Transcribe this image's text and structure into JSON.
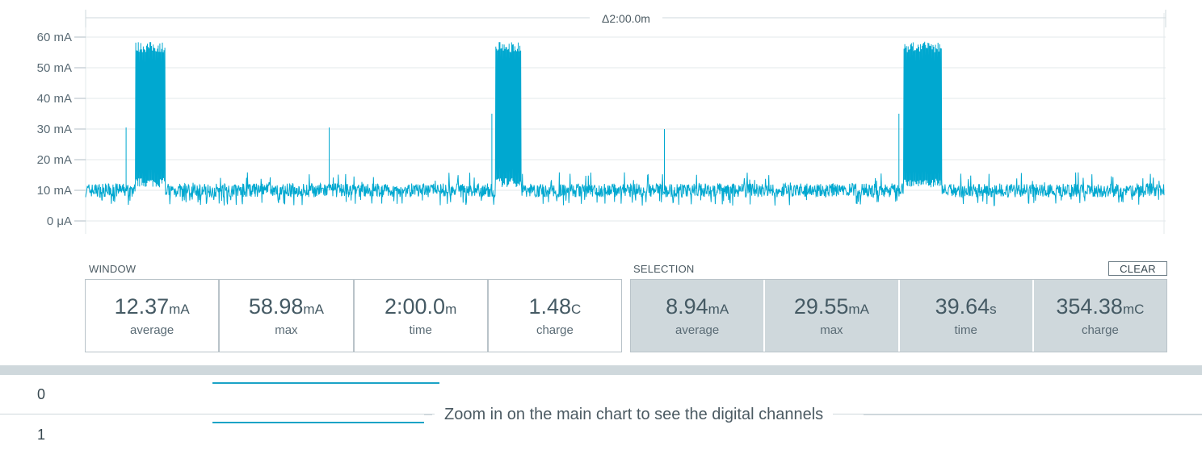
{
  "chart": {
    "delta_label": "Δ2:00.0m",
    "y_ticks": [
      "60 mA",
      "50 mA",
      "40 mA",
      "30 mA",
      "20 mA",
      "10 mA",
      "0 μA"
    ],
    "line_color": "#00a8d0"
  },
  "chart_data": {
    "type": "line",
    "title": "",
    "xlabel": "",
    "ylabel": "",
    "ylim": [
      0,
      60
    ],
    "y_unit": "mA",
    "x_range_label": "Δ2:00.0m",
    "series": [
      {
        "name": "",
        "points": [
          [
            0.0,
            10.5
          ],
          [
            1.6,
            11.0
          ],
          [
            3.1,
            10.2
          ],
          [
            4.5,
            30.5
          ],
          [
            5.0,
            9.8
          ],
          [
            5.3,
            12.0
          ],
          [
            5.5,
            57.0
          ],
          [
            7.0,
            57.5
          ],
          [
            8.8,
            58.9
          ],
          [
            9.0,
            12.0
          ],
          [
            9.2,
            8.0
          ],
          [
            16.0,
            10.5
          ],
          [
            20.0,
            11.0
          ],
          [
            26.3,
            10.8
          ],
          [
            27.1,
            30.5
          ],
          [
            27.8,
            11.0
          ],
          [
            34.0,
            12.5
          ],
          [
            40.0,
            10.5
          ],
          [
            44.6,
            10.8
          ],
          [
            45.2,
            35.0
          ],
          [
            45.6,
            57.0
          ],
          [
            47.0,
            57.5
          ],
          [
            48.4,
            58.0
          ],
          [
            48.6,
            11.0
          ],
          [
            49.0,
            8.5
          ],
          [
            55.0,
            10.5
          ],
          [
            61.0,
            10.5
          ],
          [
            64.3,
            10.8
          ],
          [
            64.4,
            30.0
          ],
          [
            64.6,
            10.8
          ],
          [
            70.0,
            11.0
          ],
          [
            80.0,
            11.5
          ],
          [
            86.0,
            10.5
          ],
          [
            89.9,
            10.8
          ],
          [
            90.5,
            35.0
          ],
          [
            91.0,
            58.5
          ],
          [
            93.0,
            57.5
          ],
          [
            95.2,
            58.2
          ],
          [
            95.4,
            11.0
          ],
          [
            96.0,
            9.0
          ],
          [
            100.0,
            10.5
          ],
          [
            110.0,
            11.0
          ],
          [
            117.0,
            10.8
          ],
          [
            120.0,
            10.5
          ]
        ]
      }
    ],
    "x_unit": "s",
    "xlim": [
      0,
      120
    ],
    "grid": true
  },
  "window": {
    "title": "WINDOW",
    "stats": [
      {
        "value": "12.37",
        "unit": "mA",
        "label": "average"
      },
      {
        "value": "58.98",
        "unit": "mA",
        "label": "max"
      },
      {
        "value": "2:00.0",
        "unit": "m",
        "label": "time"
      },
      {
        "value": "1.48",
        "unit": "C",
        "label": "charge"
      }
    ]
  },
  "selection": {
    "title": "SELECTION",
    "clear_label": "CLEAR",
    "stats": [
      {
        "value": "8.94",
        "unit": "mA",
        "label": "average"
      },
      {
        "value": "29.55",
        "unit": "mA",
        "label": "max"
      },
      {
        "value": "39.64",
        "unit": "s",
        "label": "time"
      },
      {
        "value": "354.38",
        "unit": "mC",
        "label": "charge"
      }
    ]
  },
  "digital": {
    "channels": [
      "0",
      "1"
    ],
    "message": "Zoom in on the main chart to see the digital channels"
  }
}
